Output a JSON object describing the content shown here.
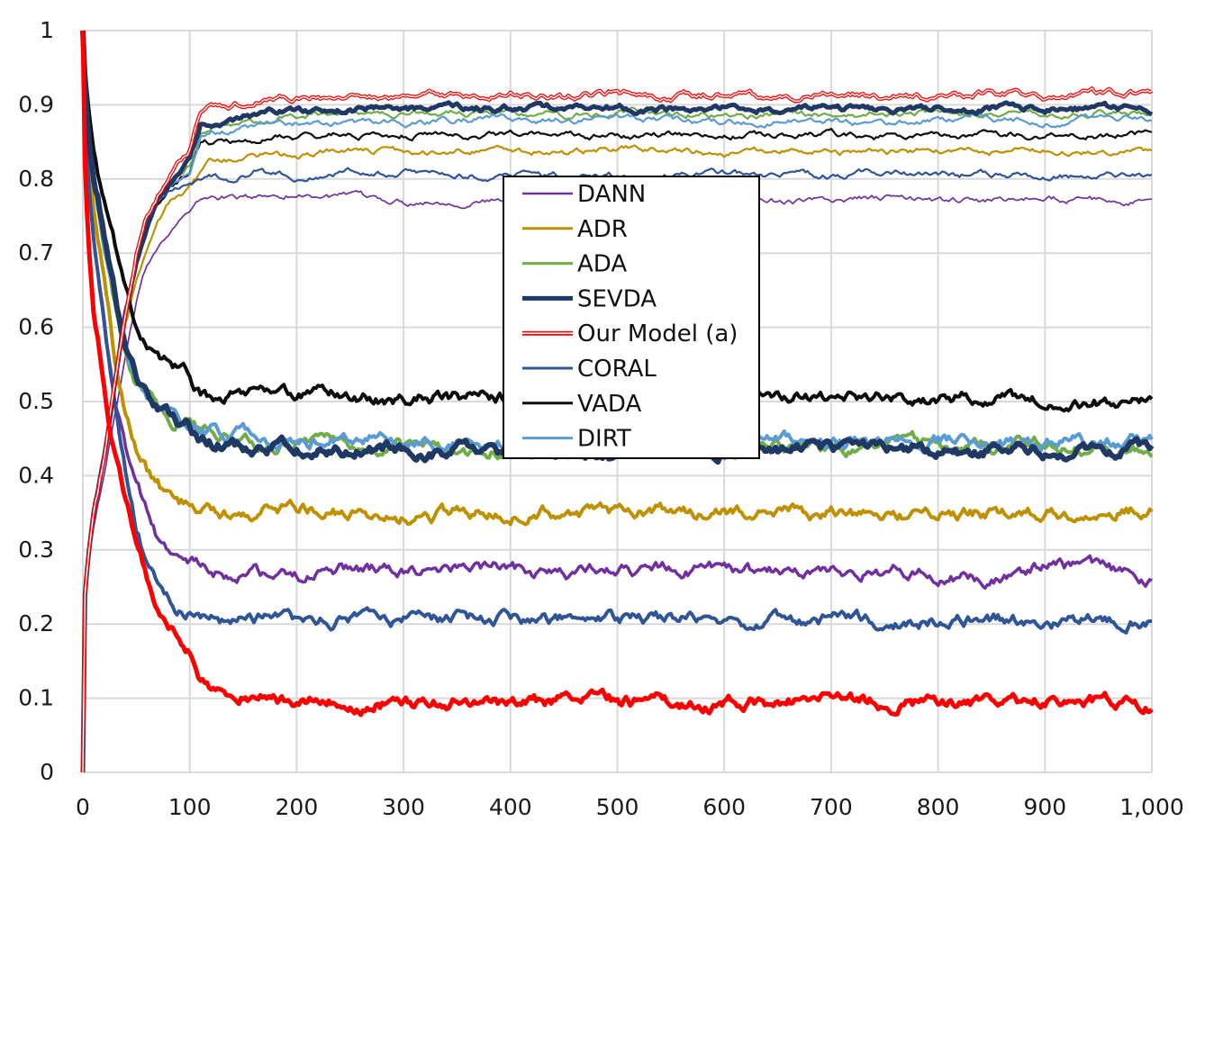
{
  "chart_data": {
    "type": "line",
    "title": "",
    "xlabel": "",
    "ylabel": "",
    "xlim": [
      0,
      1000
    ],
    "ylim": [
      0,
      1
    ],
    "x_ticks": [
      {
        "value": 0,
        "label": "0"
      },
      {
        "value": 100,
        "label": "100"
      },
      {
        "value": 200,
        "label": "200"
      },
      {
        "value": 300,
        "label": "300"
      },
      {
        "value": 400,
        "label": "400"
      },
      {
        "value": 500,
        "label": "500"
      },
      {
        "value": 600,
        "label": "600"
      },
      {
        "value": 700,
        "label": "700"
      },
      {
        "value": 800,
        "label": "800"
      },
      {
        "value": 900,
        "label": "900"
      },
      {
        "value": 1000,
        "label": "1,000"
      }
    ],
    "y_ticks": [
      {
        "value": 0,
        "label": "0"
      },
      {
        "value": 0.1,
        "label": "0.1"
      },
      {
        "value": 0.2,
        "label": "0.2"
      },
      {
        "value": 0.3,
        "label": "0.3"
      },
      {
        "value": 0.4,
        "label": "0.4"
      },
      {
        "value": 0.5,
        "label": "0.5"
      },
      {
        "value": 0.6,
        "label": "0.6"
      },
      {
        "value": 0.7,
        "label": "0.7"
      },
      {
        "value": 0.8,
        "label": "0.8"
      },
      {
        "value": 0.9,
        "label": "0.9"
      },
      {
        "value": 1,
        "label": "1"
      }
    ],
    "grid": true,
    "legend_position": "center",
    "x": [
      0,
      2,
      5,
      10,
      20,
      30,
      40,
      50,
      60,
      70,
      80,
      90,
      100,
      110,
      120,
      140,
      160,
      180,
      200,
      250,
      300,
      350,
      400,
      450,
      500,
      550,
      600,
      650,
      700,
      750,
      800,
      850,
      900,
      950,
      1000
    ],
    "series": [
      {
        "name": "DANN",
        "color": "#7030a0",
        "style": "thin",
        "accuracy": [
          0.0,
          0.22,
          0.28,
          0.33,
          0.4,
          0.48,
          0.56,
          0.63,
          0.68,
          0.71,
          0.73,
          0.745,
          0.755,
          0.77,
          0.775,
          0.775,
          0.775,
          0.78,
          0.78,
          0.775,
          0.77,
          0.77,
          0.77,
          0.775,
          0.77,
          0.775,
          0.77,
          0.77,
          0.77,
          0.775,
          0.77,
          0.77,
          0.775,
          0.77,
          0.77
        ],
        "loss": [
          1.0,
          0.9,
          0.82,
          0.72,
          0.6,
          0.5,
          0.44,
          0.39,
          0.35,
          0.31,
          0.29,
          0.285,
          0.28,
          0.275,
          0.27,
          0.265,
          0.27,
          0.265,
          0.26,
          0.275,
          0.27,
          0.27,
          0.275,
          0.265,
          0.275,
          0.275,
          0.27,
          0.27,
          0.275,
          0.27,
          0.27,
          0.26,
          0.28,
          0.27,
          0.26
        ]
      },
      {
        "name": "ADR",
        "color": "#bf9000",
        "style": "normal",
        "accuracy": [
          0.0,
          0.23,
          0.28,
          0.34,
          0.42,
          0.52,
          0.6,
          0.66,
          0.71,
          0.75,
          0.77,
          0.78,
          0.79,
          0.81,
          0.825,
          0.825,
          0.83,
          0.835,
          0.83,
          0.84,
          0.835,
          0.84,
          0.84,
          0.835,
          0.84,
          0.84,
          0.835,
          0.84,
          0.835,
          0.835,
          0.84,
          0.84,
          0.84,
          0.835,
          0.835
        ],
        "loss": [
          1.0,
          0.92,
          0.85,
          0.76,
          0.66,
          0.56,
          0.49,
          0.44,
          0.41,
          0.39,
          0.37,
          0.36,
          0.36,
          0.355,
          0.355,
          0.35,
          0.35,
          0.36,
          0.355,
          0.35,
          0.345,
          0.35,
          0.35,
          0.35,
          0.345,
          0.355,
          0.35,
          0.35,
          0.35,
          0.345,
          0.35,
          0.35,
          0.35,
          0.355,
          0.355
        ]
      },
      {
        "name": "ADA",
        "color": "#70ad47",
        "style": "normal",
        "accuracy": [
          0.0,
          0.24,
          0.29,
          0.35,
          0.43,
          0.53,
          0.62,
          0.69,
          0.74,
          0.77,
          0.79,
          0.81,
          0.82,
          0.86,
          0.87,
          0.87,
          0.875,
          0.88,
          0.885,
          0.89,
          0.89,
          0.89,
          0.89,
          0.885,
          0.89,
          0.89,
          0.885,
          0.89,
          0.885,
          0.885,
          0.89,
          0.89,
          0.885,
          0.89,
          0.89
        ],
        "loss": [
          1.0,
          0.93,
          0.86,
          0.8,
          0.72,
          0.64,
          0.57,
          0.53,
          0.51,
          0.49,
          0.48,
          0.47,
          0.47,
          0.455,
          0.45,
          0.45,
          0.44,
          0.445,
          0.445,
          0.44,
          0.44,
          0.435,
          0.435,
          0.44,
          0.44,
          0.44,
          0.44,
          0.44,
          0.44,
          0.44,
          0.445,
          0.44,
          0.445,
          0.44,
          0.44
        ]
      },
      {
        "name": "SEVDA",
        "color": "#203864",
        "style": "thick",
        "accuracy": [
          0.0,
          0.24,
          0.29,
          0.35,
          0.43,
          0.53,
          0.62,
          0.69,
          0.74,
          0.77,
          0.79,
          0.8,
          0.82,
          0.87,
          0.875,
          0.875,
          0.885,
          0.89,
          0.89,
          0.895,
          0.895,
          0.895,
          0.895,
          0.895,
          0.895,
          0.895,
          0.895,
          0.895,
          0.895,
          0.895,
          0.895,
          0.895,
          0.895,
          0.895,
          0.895
        ],
        "loss": [
          1.0,
          0.93,
          0.86,
          0.8,
          0.72,
          0.64,
          0.57,
          0.53,
          0.51,
          0.49,
          0.48,
          0.47,
          0.465,
          0.45,
          0.445,
          0.445,
          0.435,
          0.44,
          0.44,
          0.435,
          0.435,
          0.435,
          0.43,
          0.435,
          0.435,
          0.435,
          0.43,
          0.435,
          0.435,
          0.435,
          0.435,
          0.435,
          0.435,
          0.435,
          0.435
        ]
      },
      {
        "name": "Our Model (a)",
        "color": "#ff0000",
        "style": "double",
        "accuracy": [
          0.0,
          0.24,
          0.29,
          0.35,
          0.43,
          0.53,
          0.62,
          0.7,
          0.75,
          0.78,
          0.8,
          0.82,
          0.84,
          0.89,
          0.9,
          0.9,
          0.905,
          0.91,
          0.91,
          0.91,
          0.91,
          0.915,
          0.915,
          0.91,
          0.915,
          0.91,
          0.915,
          0.91,
          0.915,
          0.91,
          0.91,
          0.915,
          0.91,
          0.915,
          0.915
        ],
        "loss": [
          1.0,
          0.82,
          0.72,
          0.62,
          0.52,
          0.43,
          0.36,
          0.3,
          0.26,
          0.23,
          0.2,
          0.19,
          0.17,
          0.12,
          0.11,
          0.105,
          0.105,
          0.1,
          0.095,
          0.095,
          0.095,
          0.095,
          0.095,
          0.095,
          0.095,
          0.095,
          0.095,
          0.095,
          0.095,
          0.095,
          0.095,
          0.095,
          0.095,
          0.095,
          0.09
        ]
      },
      {
        "name": "CORAL",
        "color": "#2f5597",
        "style": "normal",
        "accuracy": [
          0.0,
          0.24,
          0.29,
          0.35,
          0.43,
          0.53,
          0.62,
          0.69,
          0.74,
          0.77,
          0.78,
          0.79,
          0.8,
          0.8,
          0.805,
          0.8,
          0.81,
          0.805,
          0.8,
          0.81,
          0.81,
          0.805,
          0.805,
          0.805,
          0.805,
          0.805,
          0.81,
          0.805,
          0.805,
          0.81,
          0.805,
          0.805,
          0.805,
          0.805,
          0.805
        ],
        "loss": [
          1.0,
          0.88,
          0.8,
          0.72,
          0.6,
          0.49,
          0.4,
          0.33,
          0.28,
          0.25,
          0.23,
          0.22,
          0.215,
          0.21,
          0.205,
          0.205,
          0.205,
          0.205,
          0.2,
          0.205,
          0.205,
          0.205,
          0.21,
          0.205,
          0.205,
          0.205,
          0.205,
          0.205,
          0.205,
          0.205,
          0.205,
          0.205,
          0.205,
          0.205,
          0.205
        ]
      },
      {
        "name": "VADA",
        "color": "#0d0d0d",
        "style": "normal",
        "accuracy": [
          0.0,
          0.24,
          0.29,
          0.35,
          0.43,
          0.53,
          0.62,
          0.69,
          0.74,
          0.77,
          0.79,
          0.8,
          0.81,
          0.85,
          0.85,
          0.85,
          0.85,
          0.855,
          0.855,
          0.86,
          0.86,
          0.86,
          0.86,
          0.86,
          0.86,
          0.86,
          0.86,
          0.86,
          0.86,
          0.855,
          0.86,
          0.86,
          0.86,
          0.86,
          0.86
        ],
        "loss": [
          1.0,
          0.95,
          0.9,
          0.84,
          0.77,
          0.71,
          0.65,
          0.6,
          0.57,
          0.56,
          0.55,
          0.545,
          0.54,
          0.51,
          0.505,
          0.51,
          0.51,
          0.51,
          0.51,
          0.505,
          0.505,
          0.505,
          0.505,
          0.505,
          0.505,
          0.505,
          0.505,
          0.505,
          0.505,
          0.505,
          0.505,
          0.505,
          0.505,
          0.5,
          0.505
        ]
      },
      {
        "name": "DIRT",
        "color": "#5b9bd5",
        "style": "normal",
        "accuracy": [
          0.0,
          0.24,
          0.29,
          0.35,
          0.43,
          0.53,
          0.62,
          0.69,
          0.74,
          0.77,
          0.79,
          0.8,
          0.81,
          0.86,
          0.865,
          0.865,
          0.87,
          0.875,
          0.875,
          0.875,
          0.875,
          0.88,
          0.88,
          0.88,
          0.88,
          0.88,
          0.875,
          0.88,
          0.88,
          0.875,
          0.88,
          0.88,
          0.875,
          0.88,
          0.88
        ],
        "loss": [
          1.0,
          0.93,
          0.86,
          0.8,
          0.72,
          0.64,
          0.57,
          0.53,
          0.51,
          0.49,
          0.48,
          0.47,
          0.465,
          0.46,
          0.46,
          0.455,
          0.46,
          0.45,
          0.45,
          0.45,
          0.45,
          0.445,
          0.445,
          0.445,
          0.445,
          0.445,
          0.445,
          0.45,
          0.445,
          0.445,
          0.445,
          0.445,
          0.445,
          0.445,
          0.45
        ]
      }
    ]
  }
}
